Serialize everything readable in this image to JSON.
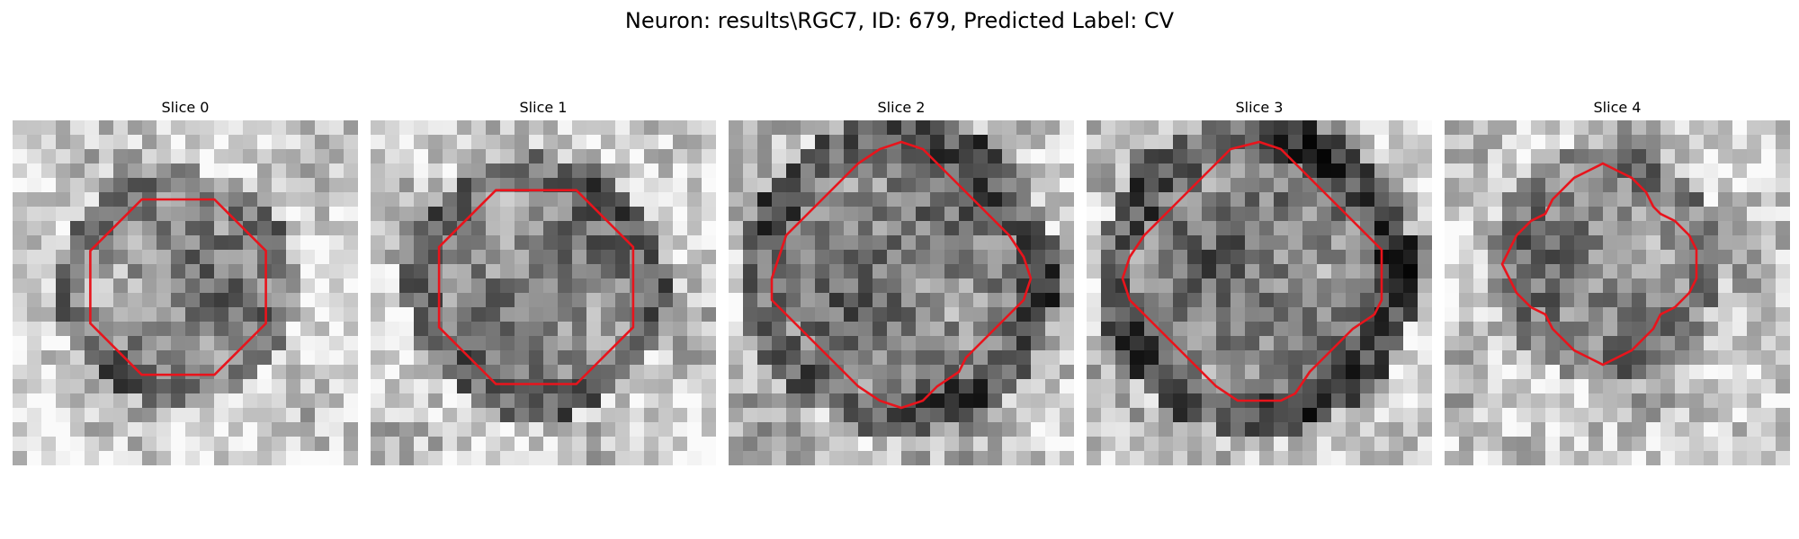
{
  "figure": {
    "title": "Neuron: results\\RGC7, ID: 679, Predicted Label: CV"
  },
  "panels": [
    {
      "title": "Slice 0"
    },
    {
      "title": "Slice 1"
    },
    {
      "title": "Slice 2"
    },
    {
      "title": "Slice 3"
    },
    {
      "title": "Slice 4"
    }
  ],
  "colors": {
    "contour": "#e8141c",
    "background": "#ffffff",
    "colormap": "gray"
  }
}
